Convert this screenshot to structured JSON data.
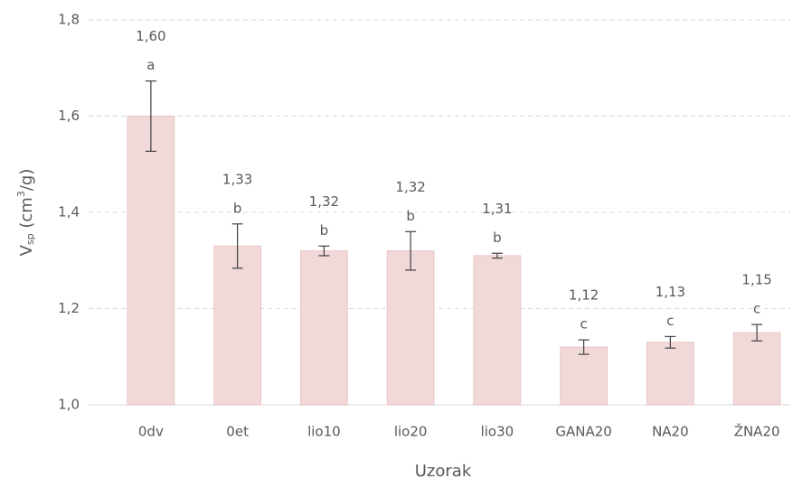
{
  "chart_data": {
    "type": "bar",
    "x_label": "Uzorak",
    "y_label": [
      "V",
      "sp",
      " (cm",
      "3",
      "/g)"
    ],
    "categories": [
      "0dv",
      "0et",
      "lio10",
      "lio20",
      "lio30",
      "GANA20",
      "NA20",
      "ŽNA20"
    ],
    "values": [
      1.6,
      1.33,
      1.32,
      1.32,
      1.31,
      1.12,
      1.13,
      1.15
    ],
    "value_labels": [
      "1,60",
      "1,33",
      "1,32",
      "1,32",
      "1,31",
      "1,12",
      "1,13",
      "1,15"
    ],
    "errors": [
      0.073,
      0.046,
      0.01,
      0.04,
      0.005,
      0.015,
      0.012,
      0.017
    ],
    "letters": [
      "a",
      "b",
      "b",
      "b",
      "b",
      "c",
      "c",
      "c"
    ],
    "color": "#f2d9d9",
    "ylim": [
      1.0,
      1.8
    ],
    "yticks": [
      {
        "value": 1.0,
        "label": "1,0"
      },
      {
        "value": 1.2,
        "label": "1,2"
      },
      {
        "value": 1.4,
        "label": "1,4"
      },
      {
        "value": 1.6,
        "label": "1,6"
      },
      {
        "value": 1.8,
        "label": "1,8"
      }
    ],
    "grid": true
  }
}
